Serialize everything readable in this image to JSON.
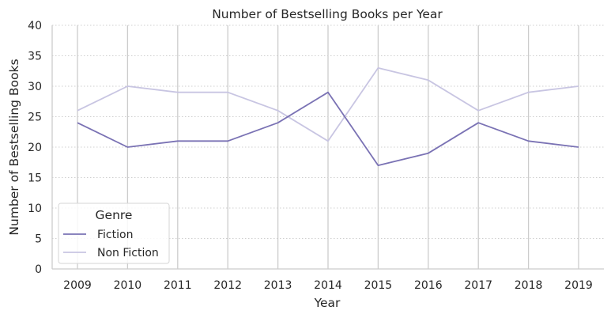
{
  "chart_data": {
    "type": "line",
    "title": "Number of Bestselling Books per Year",
    "xlabel": "Year",
    "ylabel": "Number of Bestselling Books",
    "x": [
      "2009",
      "2010",
      "2011",
      "2012",
      "2013",
      "2014",
      "2015",
      "2016",
      "2017",
      "2018",
      "2019"
    ],
    "ylim": [
      0,
      40
    ],
    "yticks": [
      0,
      5,
      10,
      15,
      20,
      25,
      30,
      35,
      40
    ],
    "grid": true,
    "legend": {
      "title": "Genre",
      "placement": "bottom-left"
    },
    "series": [
      {
        "name": "Fiction",
        "color": "#7a72b4",
        "values": [
          24,
          20,
          21,
          21,
          24,
          29,
          17,
          19,
          24,
          21,
          20
        ]
      },
      {
        "name": "Non Fiction",
        "color": "#c8c5e2",
        "values": [
          26,
          30,
          29,
          29,
          26,
          21,
          33,
          31,
          26,
          29,
          30
        ]
      }
    ]
  }
}
